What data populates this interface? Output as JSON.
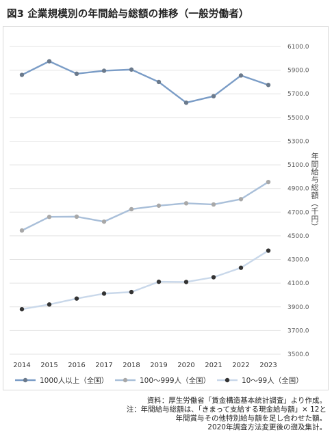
{
  "title": "図3 企業規模別の年間給与総額の推移（一般労働者）",
  "chart_data": {
    "type": "line",
    "categories": [
      "2014",
      "2015",
      "2016",
      "2017",
      "2018",
      "2019",
      "2020",
      "2021",
      "2022",
      "2023"
    ],
    "y_ticks": [
      "3500.0",
      "3700.0",
      "3900.0",
      "4100.0",
      "4300.0",
      "4500.0",
      "4700.0",
      "4900.0",
      "5100.0",
      "5300.0",
      "5500.0",
      "5700.0",
      "5900.0",
      "6100.0"
    ],
    "ylim": [
      3500,
      6100
    ],
    "ylabel": "年間給与総額（千円）",
    "grid": true,
    "legend_position": "bottom",
    "series": [
      {
        "name": "1000人以上（全国）",
        "color": "#7a9cc6",
        "marker": "#6b7a8c",
        "values": [
          5860,
          5975,
          5870,
          5895,
          5905,
          5800,
          5625,
          5680,
          5855,
          5775
        ]
      },
      {
        "name": "100〜999人（全国）",
        "color": "#a9bfd9",
        "marker": "#a8a8a8",
        "values": [
          4545,
          4660,
          4662,
          4620,
          4725,
          4755,
          4775,
          4765,
          4810,
          4955
        ]
      },
      {
        "name": "10〜99人（全国）",
        "color": "#c9d8ea",
        "marker": "#333333",
        "values": [
          3880,
          3920,
          3970,
          4012,
          4025,
          4112,
          4110,
          4150,
          4230,
          4375
        ]
      }
    ]
  },
  "notes": [
    "資料：厚生労働省「賃金構造基本統計調査」より作成。",
    "注：年間給与総額は、「きまって支給する現金給与額」× 12と",
    "年間賞与その他特別給与額を足し合わせた額。",
    "2020年調査方法変更後の遡及集計。"
  ]
}
